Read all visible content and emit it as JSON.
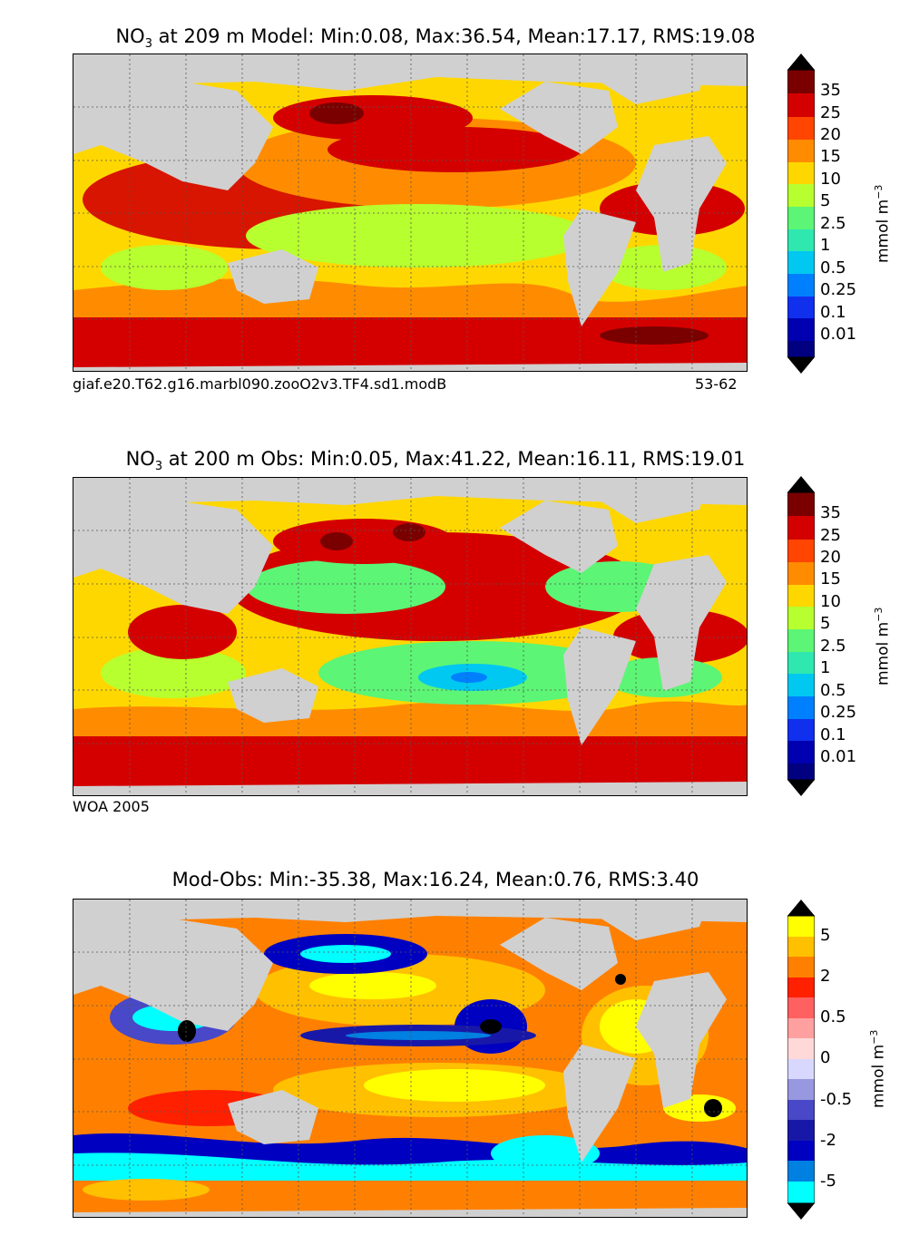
{
  "panels": [
    {
      "title_prefix": "NO",
      "title_sub": "3",
      "title_rest": " at 209 m Model: Min:0.08, Max:36.54, Mean:17.17, RMS:19.08",
      "caption_left": "giaf.e20.T62.g16.marbl090.zooO2v3.TF4.sd1.modB",
      "caption_right": "53-62"
    },
    {
      "title_prefix": "NO",
      "title_sub": "3",
      "title_rest": " at 200 m Obs: Min:0.05, Max:41.22, Mean:16.11, RMS:19.01",
      "caption_left": "WOA 2005",
      "caption_right": ""
    },
    {
      "title_prefix": "",
      "title_sub": "",
      "title_rest": "Mod-Obs: Min:-35.38, Max:16.24, Mean:0.76, RMS:3.40",
      "caption_left": "",
      "caption_right": ""
    }
  ],
  "colorbar_unit": {
    "base": "mmol m",
    "exp": "−3"
  },
  "chart_data": [
    {
      "type": "heatmap",
      "title": "NO3 at 209 m Model: Min:0.08, Max:36.54, Mean:17.17, RMS:19.08",
      "stats": {
        "min": 0.08,
        "max": 36.54,
        "mean": 17.17,
        "rms": 19.08
      },
      "depth_m": 209,
      "colorbar_labels": [
        "35",
        "25",
        "20",
        "15",
        "10",
        "5",
        "2.5",
        "1",
        "0.5",
        "0.25",
        "0.1",
        "0.01"
      ],
      "colorbar_colors": [
        "#7a0000",
        "#d40000",
        "#ff4500",
        "#ff8c00",
        "#ffd700",
        "#b7ff2e",
        "#5cf575",
        "#2ee8b0",
        "#00c8f0",
        "#0080ff",
        "#1030ee",
        "#0000b0",
        "#000080"
      ],
      "background": "yellow (high-latitude ~10), red (southern ocean ~25-35), green/yellow (subtropical gyres ~5-10)"
    },
    {
      "type": "heatmap",
      "title": "NO3 at 200 m Obs: Min:0.05, Max:41.22, Mean:16.11, RMS:19.01",
      "stats": {
        "min": 0.05,
        "max": 41.22,
        "mean": 16.11,
        "rms": 19.01
      },
      "depth_m": 200,
      "colorbar_labels": [
        "35",
        "25",
        "20",
        "15",
        "10",
        "5",
        "2.5",
        "1",
        "0.5",
        "0.25",
        "0.1",
        "0.01"
      ],
      "colorbar_colors": [
        "#7a0000",
        "#d40000",
        "#ff4500",
        "#ff8c00",
        "#ffd700",
        "#b7ff2e",
        "#5cf575",
        "#2ee8b0",
        "#00c8f0",
        "#0080ff",
        "#1030ee",
        "#0000b0",
        "#000080"
      ]
    },
    {
      "type": "heatmap",
      "title": "Mod-Obs: Min:-35.38, Max:16.24, Mean:0.76, RMS:3.40",
      "stats": {
        "min": -35.38,
        "max": 16.24,
        "mean": 0.76,
        "rms": 3.4
      },
      "colorbar_labels": [
        "5",
        "2",
        "0.5",
        "0",
        "-0.5",
        "-2",
        "-5"
      ],
      "colorbar_colors": [
        "#ffff00",
        "#ffc000",
        "#ff8000",
        "#ff2000",
        "#ff6060",
        "#ffa0a0",
        "#ffd8d8",
        "#d8d8ff",
        "#9898e0",
        "#4848c8",
        "#1818a8",
        "#0000c0",
        "#0080e0",
        "#00ffff"
      ]
    }
  ]
}
